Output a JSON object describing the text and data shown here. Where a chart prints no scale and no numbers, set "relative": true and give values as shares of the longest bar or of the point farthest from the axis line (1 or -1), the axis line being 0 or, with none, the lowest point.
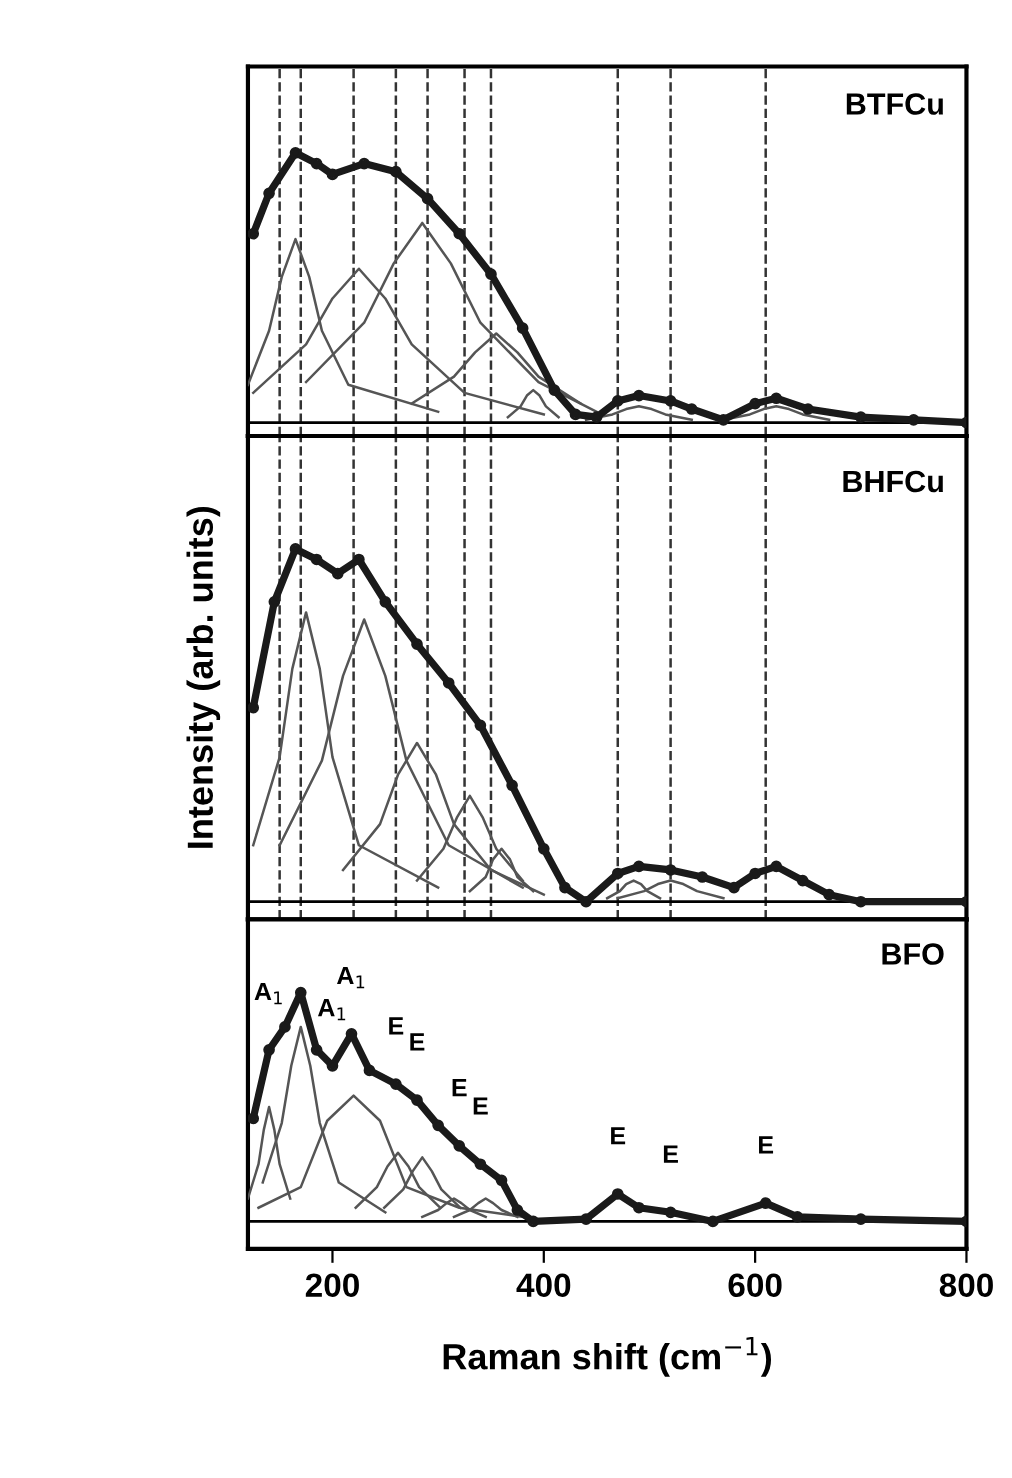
{
  "chart_data": [
    {
      "type": "line",
      "title": "BTFCu",
      "relative": true,
      "xlim": [
        120,
        800
      ],
      "tick_labels": false,
      "grid": false,
      "ref_lines": [
        {
          "axis": "x",
          "value": 150,
          "line_style": "dashed"
        },
        {
          "axis": "x",
          "value": 170,
          "line_style": "dashed"
        },
        {
          "axis": "x",
          "value": 220,
          "line_style": "dashed"
        },
        {
          "axis": "x",
          "value": 260,
          "line_style": "dashed"
        },
        {
          "axis": "x",
          "value": 290,
          "line_style": "dashed"
        },
        {
          "axis": "x",
          "value": 325,
          "line_style": "dashed"
        },
        {
          "axis": "x",
          "value": 350,
          "line_style": "dashed"
        },
        {
          "axis": "x",
          "value": 470,
          "line_style": "dashed"
        },
        {
          "axis": "x",
          "value": 520,
          "line_style": "dashed"
        },
        {
          "axis": "x",
          "value": 610,
          "line_style": "dashed"
        }
      ],
      "series": [
        {
          "color": "#1a1a1a",
          "marker": "circle",
          "x": [
            125,
            140,
            165,
            185,
            200,
            230,
            260,
            290,
            320,
            350,
            380,
            410,
            430,
            450,
            470,
            490,
            520,
            540,
            570,
            600,
            620,
            650,
            700,
            750,
            800
          ],
          "values": [
            0.7,
            0.85,
            1.0,
            0.96,
            0.92,
            0.96,
            0.93,
            0.83,
            0.7,
            0.55,
            0.35,
            0.12,
            0.03,
            0.02,
            0.08,
            0.1,
            0.08,
            0.05,
            0.01,
            0.07,
            0.09,
            0.05,
            0.02,
            0.01,
            0.0
          ]
        },
        {
          "color": "#555555",
          "marker": "none",
          "x": [
            120,
            140,
            152,
            165,
            178,
            190,
            215,
            300
          ],
          "values": [
            0.14,
            0.34,
            0.54,
            0.68,
            0.54,
            0.34,
            0.14,
            0.04
          ]
        },
        {
          "color": "#555555",
          "marker": "none",
          "x": [
            125,
            175,
            200,
            225,
            250,
            275,
            325,
            400
          ],
          "values": [
            0.11,
            0.29,
            0.46,
            0.57,
            0.46,
            0.29,
            0.11,
            0.03
          ]
        },
        {
          "color": "#555555",
          "marker": "none",
          "x": [
            175,
            230,
            258,
            285,
            312,
            340,
            395,
            450
          ],
          "values": [
            0.15,
            0.37,
            0.59,
            0.74,
            0.59,
            0.37,
            0.15,
            0.04
          ]
        },
        {
          "color": "#555555",
          "marker": "none",
          "x": [
            275,
            315,
            335,
            355,
            375,
            395,
            435
          ],
          "values": [
            0.07,
            0.17,
            0.26,
            0.33,
            0.26,
            0.17,
            0.07
          ]
        },
        {
          "color": "#555555",
          "marker": "none",
          "x": [
            366,
            378,
            384,
            390,
            396,
            402,
            414
          ],
          "values": [
            0.02,
            0.06,
            0.1,
            0.12,
            0.1,
            0.06,
            0.02
          ]
        },
        {
          "color": "#555555",
          "marker": "none",
          "x": [
            440,
            465,
            478,
            490,
            502,
            515,
            540
          ],
          "values": [
            0.01,
            0.03,
            0.05,
            0.06,
            0.05,
            0.03,
            0.01
          ]
        },
        {
          "color": "#555555",
          "marker": "none",
          "x": [
            570,
            595,
            608,
            620,
            632,
            645,
            670
          ],
          "values": [
            0.01,
            0.03,
            0.05,
            0.06,
            0.05,
            0.03,
            0.01
          ]
        }
      ]
    },
    {
      "type": "line",
      "title": "BHFCu",
      "ylabel": "Intensity (arb. units)",
      "relative": true,
      "xlim": [
        120,
        800
      ],
      "tick_labels": false,
      "grid": false,
      "ref_lines": [
        {
          "axis": "x",
          "value": 150,
          "line_style": "dashed"
        },
        {
          "axis": "x",
          "value": 170,
          "line_style": "dashed"
        },
        {
          "axis": "x",
          "value": 220,
          "line_style": "dashed"
        },
        {
          "axis": "x",
          "value": 260,
          "line_style": "dashed"
        },
        {
          "axis": "x",
          "value": 290,
          "line_style": "dashed"
        },
        {
          "axis": "x",
          "value": 325,
          "line_style": "dashed"
        },
        {
          "axis": "x",
          "value": 350,
          "line_style": "dashed"
        },
        {
          "axis": "x",
          "value": 470,
          "line_style": "dashed"
        },
        {
          "axis": "x",
          "value": 520,
          "line_style": "dashed"
        },
        {
          "axis": "x",
          "value": 610,
          "line_style": "dashed"
        }
      ],
      "series": [
        {
          "color": "#1a1a1a",
          "marker": "circle",
          "x": [
            125,
            145,
            165,
            185,
            205,
            225,
            250,
            280,
            310,
            340,
            370,
            400,
            420,
            440,
            470,
            490,
            520,
            550,
            580,
            600,
            620,
            645,
            670,
            700,
            800
          ],
          "values": [
            0.55,
            0.85,
            1.0,
            0.97,
            0.93,
            0.97,
            0.85,
            0.73,
            0.62,
            0.5,
            0.33,
            0.15,
            0.04,
            0.0,
            0.08,
            0.1,
            0.09,
            0.07,
            0.04,
            0.08,
            0.1,
            0.06,
            0.02,
            0.0,
            0.0
          ]
        },
        {
          "color": "#555555",
          "marker": "none",
          "x": [
            125,
            150,
            162,
            175,
            188,
            200,
            225,
            300
          ],
          "values": [
            0.16,
            0.41,
            0.66,
            0.82,
            0.66,
            0.41,
            0.16,
            0.04
          ]
        },
        {
          "color": "#555555",
          "marker": "none",
          "x": [
            150,
            190,
            210,
            230,
            250,
            270,
            310,
            380
          ],
          "values": [
            0.16,
            0.4,
            0.64,
            0.8,
            0.64,
            0.4,
            0.16,
            0.04
          ]
        },
        {
          "color": "#555555",
          "marker": "none",
          "x": [
            210,
            245,
            262,
            280,
            298,
            315,
            350,
            400
          ],
          "values": [
            0.09,
            0.22,
            0.36,
            0.45,
            0.36,
            0.22,
            0.09,
            0.02
          ]
        },
        {
          "color": "#555555",
          "marker": "none",
          "x": [
            280,
            305,
            318,
            330,
            342,
            355,
            380
          ],
          "values": [
            0.06,
            0.15,
            0.24,
            0.3,
            0.24,
            0.15,
            0.06
          ]
        },
        {
          "color": "#555555",
          "marker": "none",
          "x": [
            330,
            345,
            352,
            360,
            368,
            375,
            390
          ],
          "values": [
            0.03,
            0.07,
            0.12,
            0.15,
            0.12,
            0.07,
            0.03
          ]
        },
        {
          "color": "#555555",
          "marker": "none",
          "x": [
            460,
            472,
            478,
            485,
            492,
            498,
            510
          ],
          "values": [
            0.01,
            0.03,
            0.05,
            0.06,
            0.05,
            0.03,
            0.01
          ]
        },
        {
          "color": "#555555",
          "marker": "none",
          "x": [
            470,
            495,
            508,
            520,
            532,
            545,
            570
          ],
          "values": [
            0.01,
            0.03,
            0.05,
            0.06,
            0.05,
            0.03,
            0.01
          ]
        }
      ]
    },
    {
      "type": "line",
      "title": "BFO",
      "xlabel": "Raman shift (cm$^{−1}$)",
      "relative": true,
      "xlim": [
        120,
        800
      ],
      "xticks": [
        200,
        400,
        600,
        800
      ],
      "tick_labels": "x",
      "grid": false,
      "annotations": [
        {
          "text": "A$_{1}$",
          "x": 140,
          "y": 0.75
        },
        {
          "text": "A$_{1}$",
          "x": 200,
          "y": 0.68
        },
        {
          "text": "A$_{1}$",
          "x": 218,
          "y": 0.82
        },
        {
          "text": "E",
          "x": 260,
          "y": 0.6
        },
        {
          "text": "E",
          "x": 280,
          "y": 0.53
        },
        {
          "text": "E",
          "x": 320,
          "y": 0.33
        },
        {
          "text": "E",
          "x": 340,
          "y": 0.25
        },
        {
          "text": "E",
          "x": 470,
          "y": 0.12
        },
        {
          "text": "E",
          "x": 520,
          "y": 0.04
        },
        {
          "text": "E",
          "x": 610,
          "y": 0.08
        }
      ],
      "series": [
        {
          "color": "#1a1a1a",
          "marker": "circle",
          "x": [
            125,
            140,
            155,
            170,
            185,
            200,
            218,
            235,
            260,
            280,
            300,
            320,
            340,
            360,
            375,
            390,
            440,
            470,
            490,
            520,
            560,
            610,
            640,
            700,
            800
          ],
          "values": [
            0.45,
            0.75,
            0.85,
            1.0,
            0.75,
            0.68,
            0.82,
            0.66,
            0.6,
            0.53,
            0.42,
            0.33,
            0.25,
            0.18,
            0.05,
            0.0,
            0.01,
            0.12,
            0.06,
            0.04,
            0.0,
            0.08,
            0.02,
            0.01,
            0.0
          ]
        },
        {
          "color": "#555555",
          "marker": "none",
          "x": [
            120,
            130,
            135,
            140,
            145,
            150,
            160
          ],
          "values": [
            0.1,
            0.25,
            0.4,
            0.5,
            0.4,
            0.25,
            0.1
          ]
        },
        {
          "color": "#555555",
          "marker": "none",
          "x": [
            134,
            152,
            161,
            170,
            179,
            188,
            206,
            250
          ],
          "values": [
            0.17,
            0.43,
            0.68,
            0.85,
            0.68,
            0.43,
            0.17,
            0.04
          ]
        },
        {
          "color": "#555555",
          "marker": "none",
          "x": [
            130,
            170,
            195,
            220,
            245,
            270,
            320,
            380
          ],
          "values": [
            0.06,
            0.15,
            0.44,
            0.55,
            0.44,
            0.15,
            0.06,
            0.02
          ]
        },
        {
          "color": "#555555",
          "marker": "none",
          "x": [
            222,
            242,
            252,
            262,
            272,
            282,
            302
          ],
          "values": [
            0.06,
            0.15,
            0.24,
            0.3,
            0.24,
            0.15,
            0.06
          ]
        },
        {
          "color": "#555555",
          "marker": "none",
          "x": [
            249,
            267,
            276,
            285,
            294,
            303,
            321
          ],
          "values": [
            0.06,
            0.14,
            0.22,
            0.28,
            0.22,
            0.14,
            0.06
          ]
        },
        {
          "color": "#555555",
          "marker": "none",
          "x": [
            285,
            300,
            308,
            315,
            322,
            330,
            345
          ],
          "values": [
            0.02,
            0.05,
            0.08,
            0.1,
            0.08,
            0.05,
            0.02
          ]
        },
        {
          "color": "#555555",
          "marker": "none",
          "x": [
            315,
            330,
            338,
            345,
            352,
            360,
            375
          ],
          "values": [
            0.02,
            0.05,
            0.08,
            0.1,
            0.08,
            0.05,
            0.02
          ]
        }
      ]
    }
  ]
}
